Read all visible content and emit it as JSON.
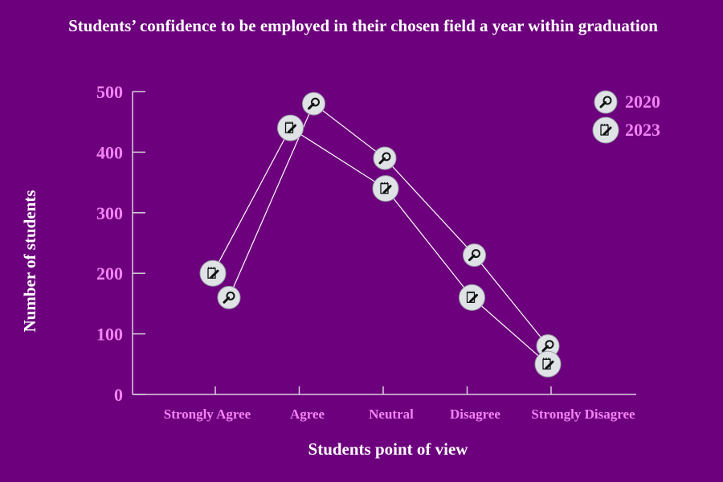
{
  "colors": {
    "background": "#6d007d",
    "tick_label": "#f383f3",
    "axis": "#d8d0dc",
    "title": "#ffffff",
    "line": "#ffffff",
    "marker_fill": "#dfe3e6"
  },
  "chart_data": {
    "type": "line",
    "title": "Students’ confidence to be employed in their chosen field a year within graduation",
    "xlabel": "Students point of view",
    "ylabel": "Number of students",
    "categories": [
      "Strongly Agree",
      "Agree",
      "Neutral",
      "Disagree",
      "Strongly Disagree"
    ],
    "ylim": [
      0,
      500
    ],
    "yticks": [
      0,
      100,
      200,
      300,
      400,
      500
    ],
    "grid": false,
    "legend_position": "top-right",
    "series": [
      {
        "name": "2020",
        "marker_icon": "magnifier-icon",
        "values": [
          160,
          480,
          390,
          230,
          80
        ]
      },
      {
        "name": "2023",
        "marker_icon": "notepad-pencil-icon",
        "values": [
          200,
          440,
          340,
          160,
          50
        ]
      }
    ]
  }
}
